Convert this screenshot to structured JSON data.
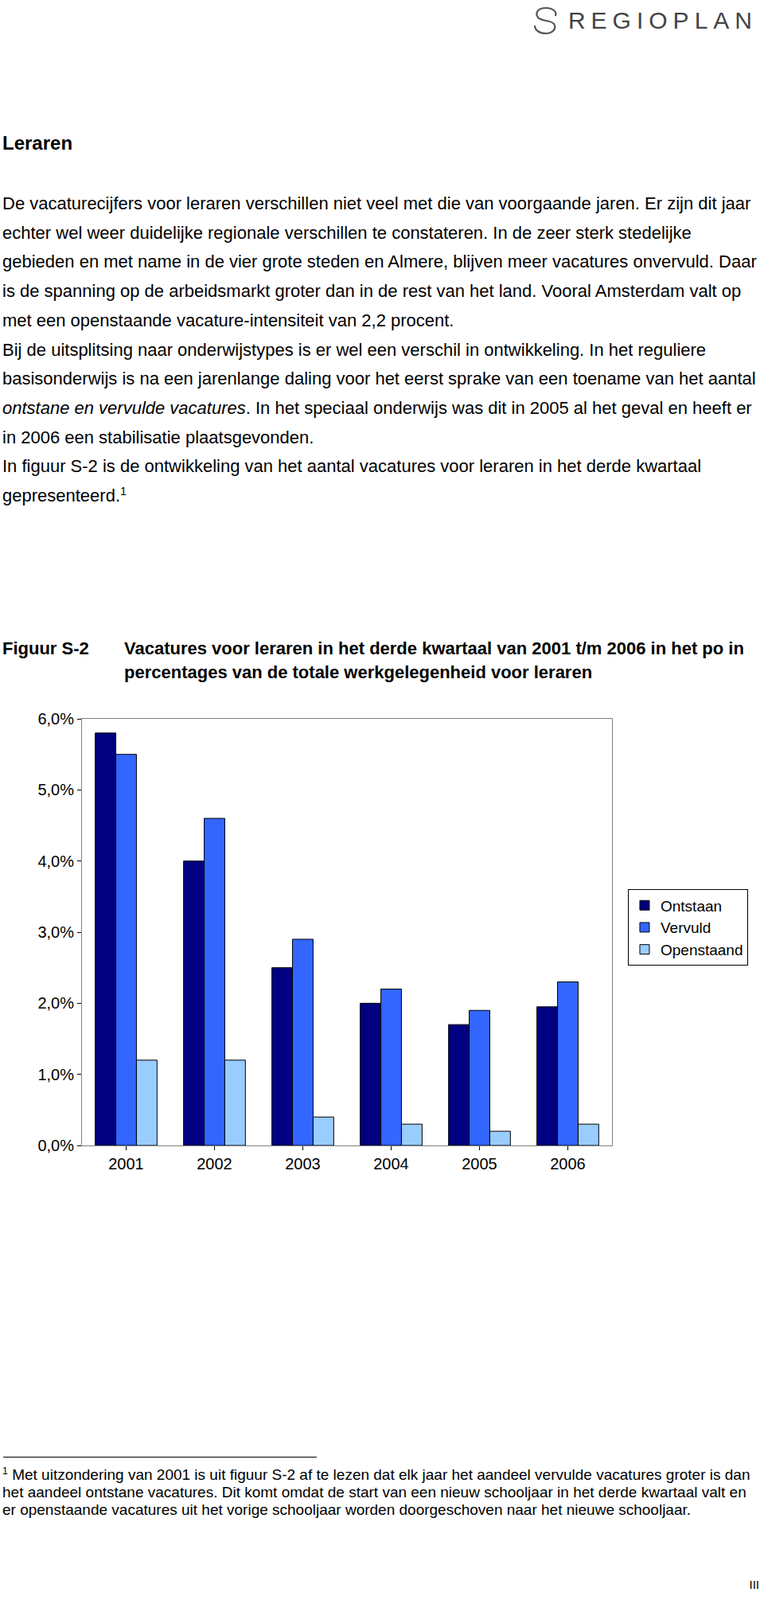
{
  "header": {
    "logo": "REGIOPLAN"
  },
  "heading": "Leraren",
  "paragraphs": [
    [
      {
        "text": "De vacaturecijfers voor leraren verschillen niet veel met die van voorgaande jaren. Er zijn dit jaar echter wel weer duidelijke regionale verschillen te constateren. In de zeer sterk stedelijke gebieden en met name in de vier grote steden en Almere, blijven meer vacatures onvervuld. Daar is de spanning op de arbeidsmarkt groter dan in de rest van het land. Vooral Amsterdam valt op met een openstaande vacature-intensiteit van 2,2 procent."
      }
    ],
    [
      {
        "text": "Bij de uitsplitsing naar onderwijstypes is er wel een verschil in ontwikkeling. In het reguliere basisonderwijs is na een jarenlange daling voor het eerst sprake van een toename van het aantal "
      },
      {
        "text": "ontstane en vervulde vacatures",
        "style": "italic"
      },
      {
        "text": ". In het speciaal onderwijs was dit in 2005 al het geval en heeft er in 2006 een stabilisatie plaatsgevonden."
      }
    ],
    [
      {
        "text": "In figuur S-2 is de ontwikkeling van het aantal vacatures voor leraren in het derde kwartaal gepresenteerd."
      },
      {
        "text": "1",
        "style": "superscript"
      }
    ]
  ],
  "figure": {
    "label": "Figuur S-2",
    "caption": "Vacatures voor leraren in het derde kwartaal van 2001 t/m 2006 in het po in percentages van de totale werkgelegenheid voor leraren"
  },
  "chart_data": {
    "type": "bar",
    "categories": [
      "2001",
      "2002",
      "2003",
      "2004",
      "2005",
      "2006"
    ],
    "series": [
      {
        "name": "Ontstaan",
        "color": "#000080",
        "values": [
          5.8,
          4.0,
          2.5,
          2.0,
          1.7,
          1.95
        ]
      },
      {
        "name": "Vervuld",
        "color": "#3366ff",
        "values": [
          5.5,
          4.6,
          2.9,
          2.2,
          1.9,
          2.3
        ]
      },
      {
        "name": "Openstaand",
        "color": "#99ccff",
        "values": [
          1.2,
          1.2,
          0.4,
          0.3,
          0.2,
          0.3
        ]
      }
    ],
    "ylim": [
      0,
      6
    ],
    "yticks": [
      {
        "value": 0,
        "label": "0,0%"
      },
      {
        "value": 1,
        "label": "1,0%"
      },
      {
        "value": 2,
        "label": "2,0%"
      },
      {
        "value": 3,
        "label": "3,0%"
      },
      {
        "value": 4,
        "label": "4,0%"
      },
      {
        "value": 5,
        "label": "5,0%"
      },
      {
        "value": 6,
        "label": "6,0%"
      }
    ],
    "grid": false,
    "legend": "right"
  },
  "footnote": {
    "marker": "1",
    "text": "Met uitzondering van 2001 is uit figuur S-2 af te lezen dat elk jaar het aandeel vervulde vacatures groter is dan het aandeel ontstane vacatures. Dit komt omdat de start van een nieuw schooljaar in het derde kwartaal valt en er openstaande vacatures uit het vorige schooljaar worden doorgeschoven naar het nieuwe schooljaar."
  },
  "page_number": "III"
}
